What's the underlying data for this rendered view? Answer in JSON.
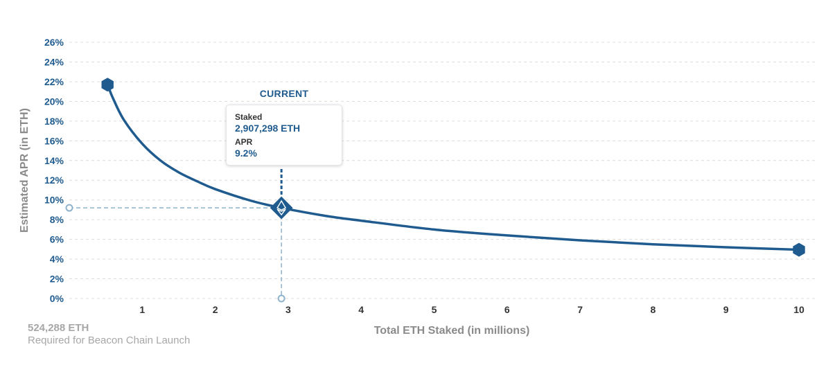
{
  "chart_data": {
    "type": "line",
    "title": "",
    "xlabel": "Total ETH Staked  (in millions)",
    "ylabel": "Estimated APR (in ETH)",
    "xlim": [
      0,
      10.2
    ],
    "ylim": [
      0,
      26
    ],
    "x_ticks": [
      "1",
      "2",
      "3",
      "4",
      "5",
      "6",
      "7",
      "8",
      "9",
      "10"
    ],
    "y_ticks": [
      "0%",
      "2%",
      "4%",
      "6%",
      "8%",
      "10%",
      "12%",
      "14%",
      "16%",
      "18%",
      "20%",
      "22%",
      "24%",
      "26%"
    ],
    "grid": true,
    "series": [
      {
        "x": [
          0.524288,
          0.6,
          0.75,
          1.0,
          1.25,
          1.5,
          1.75,
          2.0,
          2.5,
          2.907298,
          3.5,
          4.0,
          5.0,
          6.0,
          7.0,
          8.0,
          9.0,
          10.0
        ],
        "y": [
          21.7,
          20.3,
          18.1,
          15.7,
          14.0,
          12.8,
          11.9,
          11.1,
          9.9,
          9.2,
          8.4,
          7.9,
          7.0,
          6.4,
          5.9,
          5.5,
          5.2,
          4.95
        ]
      }
    ],
    "endpoints": [
      {
        "x": 0.524288,
        "y": 21.7
      },
      {
        "x": 10.0,
        "y": 4.95
      }
    ],
    "current": {
      "label": "CURRENT",
      "x": 2.907298,
      "y": 9.2,
      "staked_label": "Staked",
      "staked_value": "2,907,298 ETH",
      "apr_label": "APR",
      "apr_value": "9.2%"
    },
    "colors": {
      "line": "#1f5b8e",
      "guide": "#8fb2cc",
      "y_tick": "#1f5b8e",
      "x_tick": "#333333",
      "axis_label": "#8a8a8a"
    }
  },
  "launch_note": {
    "amount": "524,288 ETH",
    "description": "Required for Beacon Chain Launch"
  }
}
